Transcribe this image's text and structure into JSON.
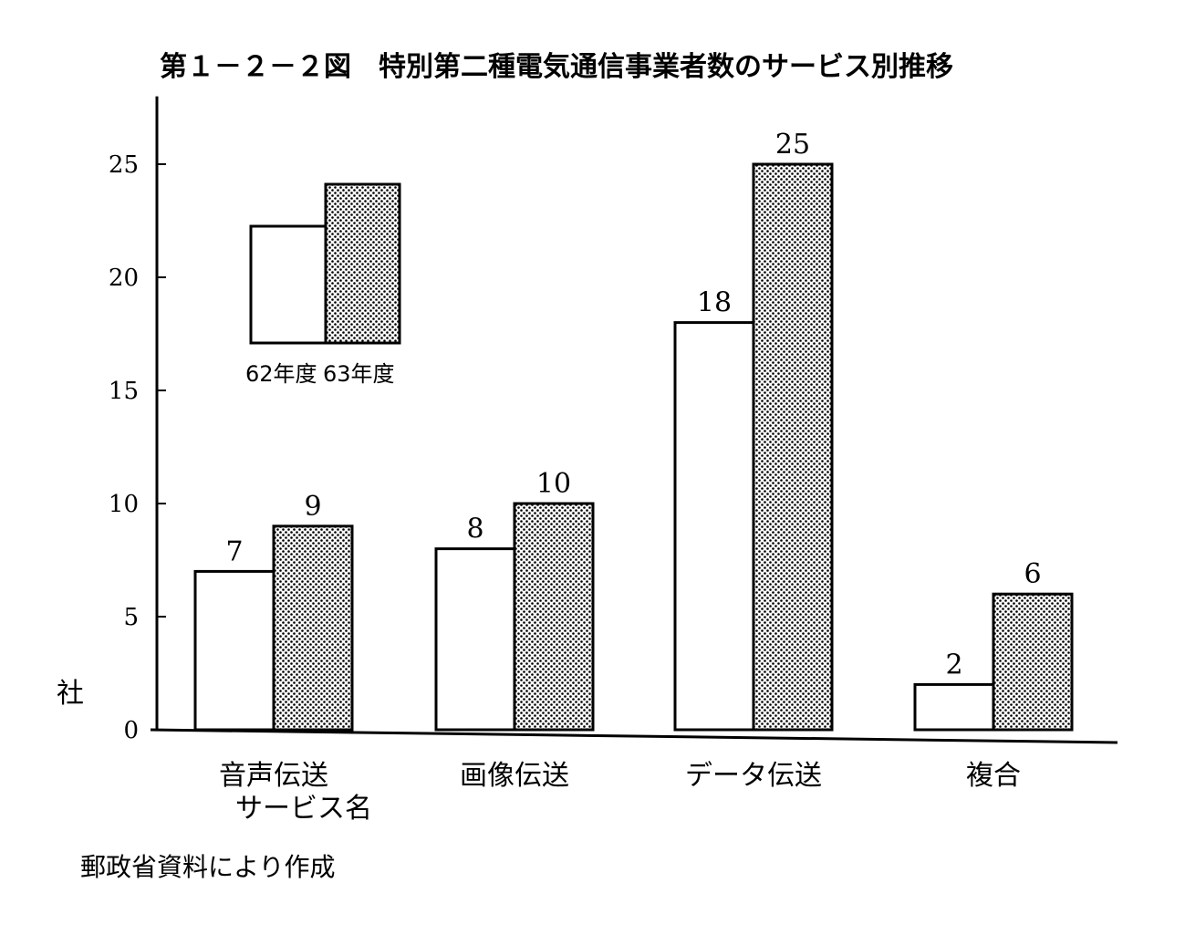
{
  "chart_data": {
    "type": "bar",
    "title": "第１－２－２図　特別第二種電気通信事業者数のサービス別推移",
    "ylabel": "社",
    "xlabel": "サービス名",
    "ylim": [
      0,
      28
    ],
    "yticks": [
      "0",
      "5",
      "10",
      "15",
      "20",
      "25"
    ],
    "categories": [
      "音声伝送",
      "画像伝送",
      "データ伝送",
      "複合"
    ],
    "series": [
      {
        "name": "62年度",
        "values": [
          7,
          8,
          18,
          2
        ],
        "labels": [
          "7",
          "8",
          "18",
          "2"
        ],
        "fill": "white"
      },
      {
        "name": "63年度",
        "values": [
          9,
          10,
          25,
          6
        ],
        "labels": [
          "9",
          "10",
          "25",
          "6"
        ],
        "fill": "dotted"
      }
    ],
    "legend_position": "top-left",
    "grid": false
  },
  "source": "郵政省資料により作成",
  "colors": {
    "ink": "#000000",
    "paper": "#ffffff"
  }
}
